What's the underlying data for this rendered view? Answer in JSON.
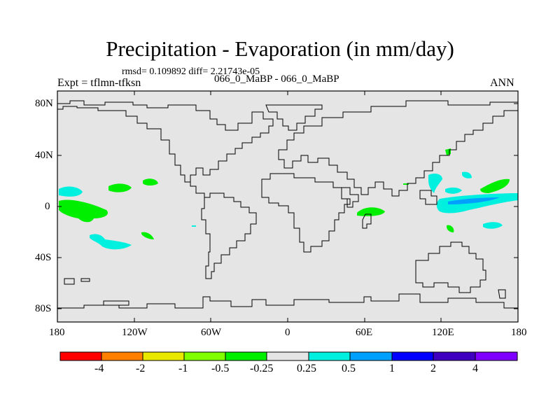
{
  "figure": {
    "title": "Precipitation - Evaporation (in mm/day)",
    "stats": "rmsd= 0.109892 diff= 2.21743e-05",
    "experiment": "Expt = tflmn-tfksn",
    "subtitle": "066_0_MaBP - 066_0_MaBP",
    "season": "ANN"
  },
  "axes": {
    "lat_ticks": [
      "80N",
      "40N",
      "0",
      "40S",
      "80S"
    ],
    "lon_ticks": [
      "180",
      "120W",
      "60W",
      "0",
      "60E",
      "120E",
      "180"
    ]
  },
  "colorbar": {
    "labels": [
      "-4",
      "-2",
      "-1",
      "-0.5",
      "-0.25",
      "0.25",
      "0.5",
      "1",
      "2",
      "4"
    ],
    "colors": [
      "#ff0000",
      "#ff8000",
      "#e8e800",
      "#80ff00",
      "#00ee00",
      "#e5e5e5",
      "#00f0e0",
      "#00a0ff",
      "#0000ff",
      "#4000c0",
      "#8000ff"
    ]
  },
  "colors": {
    "map_background": "#e5e5e5",
    "coastline": "#000000",
    "negative_anomaly": "#00ee00",
    "positive_anomaly": "#00f0e0",
    "strong_positive_anomaly": "#00a0ff"
  }
}
